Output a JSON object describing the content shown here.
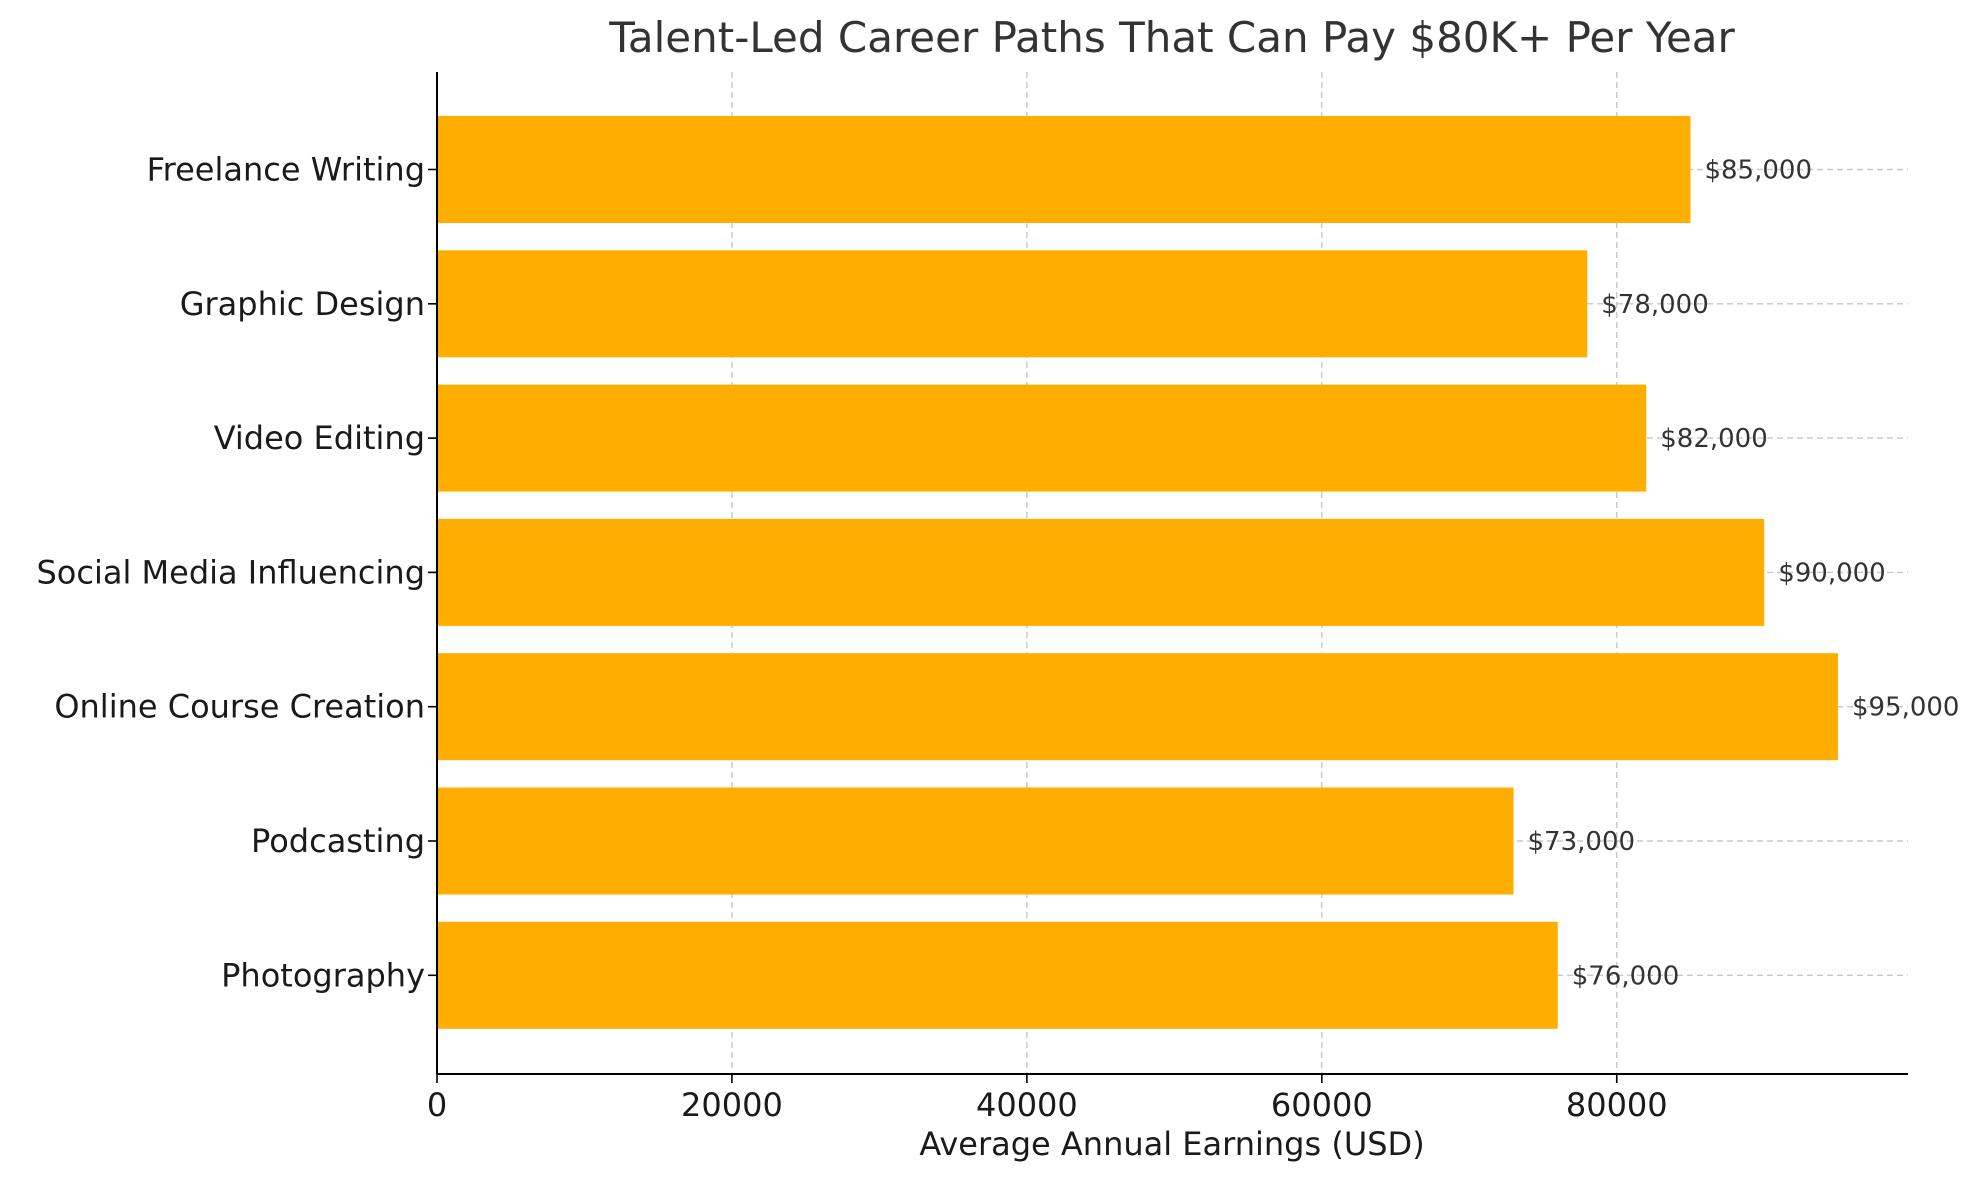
{
  "chart_data": {
    "type": "bar",
    "orientation": "horizontal",
    "title": "Talent-Led Career Paths That Can Pay $80K+ Per Year",
    "xlabel": "Average Annual Earnings (USD)",
    "ylabel": "",
    "categories": [
      "Freelance Writing",
      "Graphic Design",
      "Video Editing",
      "Social Media Influencing",
      "Online Course Creation",
      "Podcasting",
      "Photography"
    ],
    "values": [
      85000,
      78000,
      82000,
      90000,
      95000,
      73000,
      76000
    ],
    "data_labels": [
      "$85,000",
      "$78,000",
      "$82,000",
      "$90,000",
      "$95,000",
      "$73,000",
      "$76,000"
    ],
    "xlim": [
      0,
      99750
    ],
    "x_ticks": [
      0,
      20000,
      40000,
      60000,
      80000
    ],
    "x_tick_labels": [
      "0",
      "20000",
      "40000",
      "60000",
      "80000"
    ],
    "grid": true,
    "bar_color": "#ffae00",
    "grid_color": "#c8c8c8",
    "axis_color": "#000000",
    "title_color": "#333333"
  }
}
